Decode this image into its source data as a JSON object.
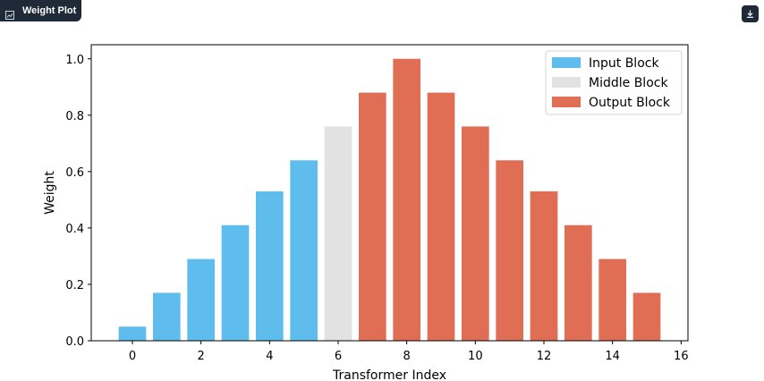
{
  "panel": {
    "title": "Weight Plot",
    "icon": "chart-icon",
    "download_icon": "download-icon"
  },
  "chart_data": {
    "type": "bar",
    "title": "",
    "xlabel": "Transformer Index",
    "ylabel": "Weight",
    "xlim": [
      -1.2,
      16.2
    ],
    "ylim": [
      0,
      1.05
    ],
    "xticks": [
      0,
      2,
      4,
      6,
      8,
      10,
      12,
      14,
      16
    ],
    "yticks": [
      0.0,
      0.2,
      0.4,
      0.6,
      0.8,
      1.0
    ],
    "ytick_labels": [
      "0.0",
      "0.2",
      "0.4",
      "0.6",
      "0.8",
      "1.0"
    ],
    "grid": false,
    "legend_position": "top-right",
    "series": [
      {
        "name": "Input Block",
        "color": "#5fbdee",
        "x": [
          0,
          1,
          2,
          3,
          4,
          5
        ],
        "values": [
          0.05,
          0.17,
          0.29,
          0.41,
          0.53,
          0.64
        ]
      },
      {
        "name": "Middle Block",
        "color": "#e2e2e2",
        "x": [
          6
        ],
        "values": [
          0.76
        ]
      },
      {
        "name": "Output Block",
        "color": "#e06e55",
        "x": [
          7,
          8,
          9,
          10,
          11,
          12,
          13,
          14,
          15
        ],
        "values": [
          0.88,
          1.0,
          0.88,
          0.76,
          0.64,
          0.53,
          0.41,
          0.29,
          0.17
        ]
      }
    ]
  }
}
